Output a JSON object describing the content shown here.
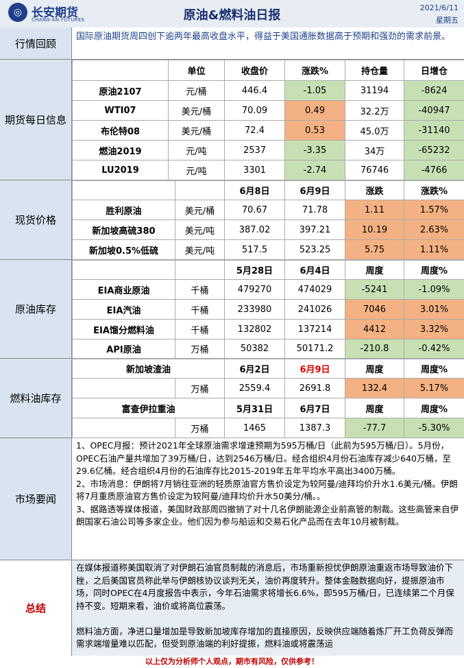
{
  "header": {
    "logo_cn": "长安期货",
    "logo_en": "CHANG-AN FUTURES",
    "title": "原油&燃料油日报",
    "date": "2021/6/11",
    "weekday": "星期五"
  },
  "review": {
    "label": "行情回顾",
    "text": "国际原油期货周四创下逾两年最高收盘水平，得益于美国通胀数据高于预期和强劲的需求前景。"
  },
  "futures": {
    "label": "期货每日信息",
    "headers": [
      "",
      "单位",
      "收盘价",
      "涨跌%",
      "持仓量",
      "日增仓"
    ],
    "rows": [
      {
        "name": "原油2107",
        "unit": "元/桶",
        "close": "446.4",
        "chg": "-1.05",
        "oi": "31194",
        "oi_chg": "-8624"
      },
      {
        "name": "WTI07",
        "unit": "美元/桶",
        "close": "70.09",
        "chg": "0.49",
        "oi": "32.2万",
        "oi_chg": "-40947"
      },
      {
        "name": "布伦特08",
        "unit": "美元/桶",
        "close": "72.4",
        "chg": "0.53",
        "oi": "45.0万",
        "oi_chg": "-31140"
      },
      {
        "name": "燃油2019",
        "unit": "元/吨",
        "close": "2537",
        "chg": "-3.35",
        "oi": "34万",
        "oi_chg": "-65232"
      },
      {
        "name": "LU2019",
        "unit": "元/吨",
        "close": "3301",
        "chg": "-2.74",
        "oi": "76746",
        "oi_chg": "-4766"
      }
    ]
  },
  "spot": {
    "label": "现货价格",
    "headers": [
      "",
      "",
      "6月8日",
      "6月9日",
      "涨跌",
      "涨跌%"
    ],
    "rows": [
      {
        "name": "胜利原油",
        "unit": "美元/桶",
        "d1": "70.67",
        "d2": "71.78",
        "chg": "1.11",
        "pct": "1.57%"
      },
      {
        "name": "新加坡高硫380",
        "unit": "美元/吨",
        "d1": "387.02",
        "d2": "397.21",
        "chg": "10.19",
        "pct": "2.63%"
      },
      {
        "name": "新加坡0.5%低硫",
        "unit": "美元/吨",
        "d1": "517.5",
        "d2": "523.25",
        "chg": "5.75",
        "pct": "1.11%"
      }
    ]
  },
  "crude_stock": {
    "label": "原油库存",
    "headers": [
      "",
      "",
      "5月28日",
      "6月4日",
      "周度",
      "周度%"
    ],
    "rows": [
      {
        "name": "EIA商业原油",
        "unit": "千桶",
        "d1": "479270",
        "d2": "474029",
        "chg": "-5241",
        "pct": "-1.09%"
      },
      {
        "name": "EIA汽油",
        "unit": "千桶",
        "d1": "233980",
        "d2": "241026",
        "chg": "7046",
        "pct": "3.01%"
      },
      {
        "name": "EIA馏分燃料油",
        "unit": "千桶",
        "d1": "132802",
        "d2": "137214",
        "chg": "4412",
        "pct": "3.32%"
      },
      {
        "name": "API原油",
        "unit": "万桶",
        "d1": "50382",
        "d2": "50171.2",
        "chg": "-210.8",
        "pct": "-0.42%"
      }
    ]
  },
  "fuel_stock": {
    "label": "燃料油库存",
    "sg": {
      "name": "新加坡渣油",
      "headers": [
        "6月2日",
        "6月9日",
        "周度",
        "周度%"
      ],
      "unit": "万桶",
      "d1": "2559.4",
      "d2": "2691.8",
      "chg": "132.4",
      "pct": "5.17%"
    },
    "fuj": {
      "name": "富查伊拉重油",
      "headers": [
        "5月31日",
        "6月7日",
        "周度",
        "周度%"
      ],
      "unit": "万桶",
      "d1": "1465",
      "d2": "1387.3",
      "chg": "-77.7",
      "pct": "-5.30%"
    }
  },
  "news": {
    "label": "市场要闻",
    "text": "1、OPEC月报：预计2021年全球原油需求增速预期为595万桶/日（此前为595万桶/日）。5月份，OPEC石油产量共增加了39万桶/日，达到2546万桶/日。经合组织4月份石油库存减少640万桶，至29.6亿桶。经合组织4月份的石油库存比2015-2019年五年平均水平高出3400万桶。\n2、市场消息：伊朗将7月销往亚洲的轻质原油官方售价设定为较阿曼/迪拜均价升水1.6美元/桶。伊朗将7月重质原油官方售价设定为较阿曼/迪拜均价升水50美分/桶。。\n3、据路透等媒体报道，美国财政部周四撤销了对十几名伊朗能源企业前高管的制裁。这些高管来自伊朗国家石油公司等多家企业。他们因为参与船运和交易石化产品而在去年10月被制裁。"
  },
  "summary": {
    "label": "总结",
    "text": "在媒体报道称美国取消了对伊朗石油官员制裁的消息后，市场重新担忧伊朗原油重返市场导致油价下挫，之后美国官员称此举与伊朗核协议谈判无关，油价再度转升。整体金融数据向好，提振原油市场，同时OPEC在4月度报告中表示，今年石油需求将增长6.6%，即595万桶/日，已连续第二个月保持不变。短期来看，油价或将高位震荡。\n\n燃料油方面，净进口量增加是导致新加坡库存增加的直接原因，反映供应端随着炼厂开工负荷反弹而需求端增量难以匹配，但受到原油端的利好提振，燃料油或将震荡运"
  },
  "footer": "以上仅为分析师个人观点，期市有风险，仅供参考！",
  "colors": {
    "green": "#c6e0b4",
    "orange": "#f4b183",
    "label_bg": "#d9e4f0",
    "red": "#c00000"
  }
}
